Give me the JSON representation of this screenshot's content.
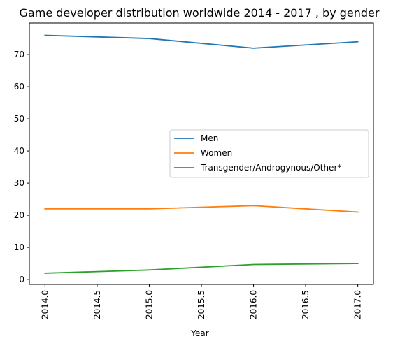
{
  "chart_data": {
    "type": "line",
    "title": "Game developer distribution worldwide 2014 - 2017 , by gender",
    "xlabel": "Year",
    "ylabel": "",
    "x": [
      2014.0,
      2015.0,
      2016.0,
      2017.0
    ],
    "x_ticks": [
      2014.0,
      2014.5,
      2015.0,
      2015.5,
      2016.0,
      2016.5,
      2017.0
    ],
    "x_tick_labels": [
      "2014.0",
      "2014.5",
      "2015.0",
      "2015.5",
      "2016.0",
      "2016.5",
      "2017.0"
    ],
    "xlim": [
      2013.85,
      2017.15
    ],
    "y_ticks": [
      0,
      10,
      20,
      30,
      40,
      50,
      60,
      70
    ],
    "y_tick_labels": [
      "0",
      "10",
      "20",
      "30",
      "40",
      "50",
      "60",
      "70"
    ],
    "ylim": [
      -1.5,
      79.8
    ],
    "grid": false,
    "legend_position": "center-right",
    "series": [
      {
        "name": "Men",
        "color": "#1f77b4",
        "values": [
          76,
          75,
          72,
          74
        ]
      },
      {
        "name": "Women",
        "color": "#ff7f0e",
        "values": [
          22,
          22,
          23,
          21
        ]
      },
      {
        "name": "Transgender/Androgynous/Other*",
        "color": "#2ca02c",
        "values": [
          2,
          3,
          4.7,
          5
        ]
      }
    ]
  }
}
